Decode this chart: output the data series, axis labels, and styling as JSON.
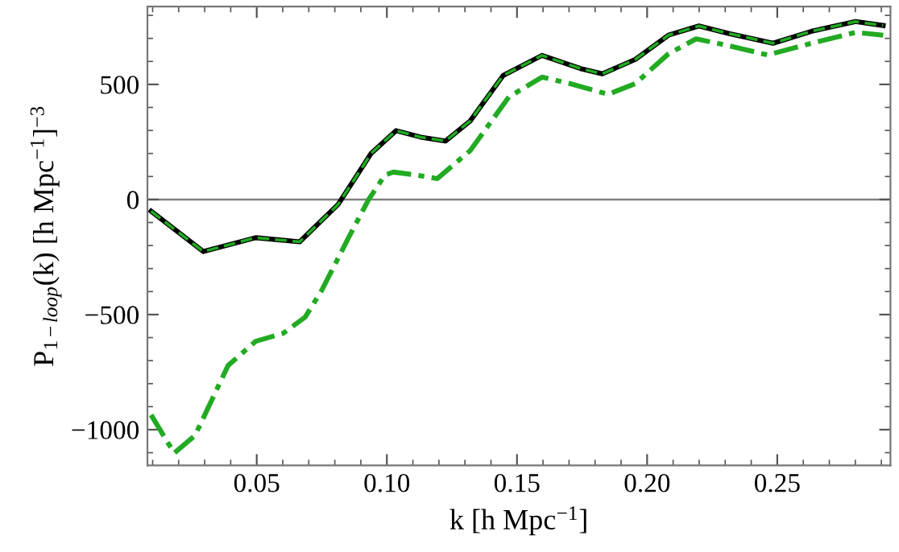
{
  "chart_data": {
    "type": "line",
    "xlabel": "k [h Mpc$^{−1}$]",
    "ylabel": "P$_{1−loop}$(k) [h Mpc$^{−1}$]$^{−3}$",
    "x": [
      0.0094,
      0.0295,
      0.0496,
      0.0665,
      0.0813,
      0.094,
      0.1035,
      0.113,
      0.1225,
      0.132,
      0.1447,
      0.1596,
      0.1744,
      0.1828,
      0.1955,
      0.2082,
      0.2199,
      0.2315,
      0.2484,
      0.2632,
      0.2801,
      0.2907
    ],
    "series": [
      {
        "color": "#000000",
        "line_style": "solid",
        "values": [
          -51,
          -226,
          -166,
          -184,
          -21,
          201,
          299,
          271,
          254,
          341,
          539,
          626,
          569,
          546,
          609,
          714,
          754,
          721,
          679,
          731,
          773,
          756
        ]
      },
      {
        "color": "#22aa22",
        "line_style": "dashed",
        "values": [
          -51,
          -226,
          -166,
          -184,
          -21,
          201,
          299,
          271,
          254,
          341,
          539,
          626,
          569,
          546,
          609,
          714,
          754,
          721,
          679,
          731,
          773,
          756
        ]
      },
      {
        "color": "#22aa22",
        "line_style": "dashdot",
        "x": [
          0.0094,
          0.0183,
          0.0263,
          0.039,
          0.0496,
          0.0602,
          0.0686,
          0.075,
          0.0855,
          0.093,
          0.0993,
          0.1025,
          0.1109,
          0.1194,
          0.132,
          0.1469,
          0.1596,
          0.1702,
          0.185,
          0.1955,
          0.2082,
          0.2188,
          0.2315,
          0.2463,
          0.2632,
          0.2801,
          0.2907
        ],
        "values": [
          -936,
          -1102,
          -1025,
          -721,
          -616,
          -581,
          -511,
          -394,
          -161,
          0,
          107,
          119,
          107,
          91,
          212,
          446,
          532,
          504,
          457,
          504,
          633,
          698,
          668,
          628,
          679,
          726,
          714
        ]
      }
    ],
    "xlim": [
      0.008,
      0.2935
    ],
    "ylim": [
      -1155,
      838
    ],
    "xticks": [
      {
        "value": 0.01,
        "label": null
      },
      {
        "value": 0.02,
        "label": null
      },
      {
        "value": 0.03,
        "label": null
      },
      {
        "value": 0.04,
        "label": null
      },
      {
        "value": 0.05,
        "label": "0.05"
      },
      {
        "value": 0.06,
        "label": null
      },
      {
        "value": 0.07,
        "label": null
      },
      {
        "value": 0.08,
        "label": null
      },
      {
        "value": 0.09,
        "label": null
      },
      {
        "value": 0.1,
        "label": "0.10"
      },
      {
        "value": 0.11,
        "label": null
      },
      {
        "value": 0.12,
        "label": null
      },
      {
        "value": 0.13,
        "label": null
      },
      {
        "value": 0.14,
        "label": null
      },
      {
        "value": 0.15,
        "label": "0.15"
      },
      {
        "value": 0.16,
        "label": null
      },
      {
        "value": 0.17,
        "label": null
      },
      {
        "value": 0.18,
        "label": null
      },
      {
        "value": 0.19,
        "label": null
      },
      {
        "value": 0.2,
        "label": "0.20"
      },
      {
        "value": 0.21,
        "label": null
      },
      {
        "value": 0.22,
        "label": null
      },
      {
        "value": 0.23,
        "label": null
      },
      {
        "value": 0.24,
        "label": null
      },
      {
        "value": 0.25,
        "label": "0.25"
      },
      {
        "value": 0.26,
        "label": null
      },
      {
        "value": 0.27,
        "label": null
      },
      {
        "value": 0.28,
        "label": null
      },
      {
        "value": 0.29,
        "label": null
      }
    ],
    "yticks": [
      {
        "value": -1100,
        "label": null
      },
      {
        "value": -1000,
        "label": "−1000"
      },
      {
        "value": -900,
        "label": null
      },
      {
        "value": -800,
        "label": null
      },
      {
        "value": -700,
        "label": null
      },
      {
        "value": -600,
        "label": null
      },
      {
        "value": -500,
        "label": "−500"
      },
      {
        "value": -400,
        "label": null
      },
      {
        "value": -300,
        "label": null
      },
      {
        "value": -200,
        "label": null
      },
      {
        "value": -100,
        "label": null
      },
      0,
      {
        "value": 100,
        "label": null
      },
      {
        "value": 200,
        "label": null
      },
      {
        "value": 300,
        "label": null
      },
      {
        "value": 400,
        "label": null
      },
      500,
      {
        "value": 600,
        "label": null
      },
      {
        "value": 700,
        "label": null
      },
      {
        "value": 800,
        "label": null
      }
    ],
    "ref_lines": [
      {
        "axis": "y",
        "value": 0,
        "color": "#808080"
      }
    ],
    "grid": false,
    "legend": false
  }
}
